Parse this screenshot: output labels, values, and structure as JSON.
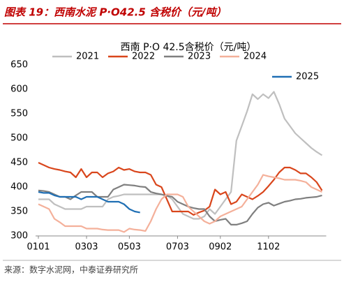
{
  "header": "图表 19：西南水泥 P·O42.5 含税价（元/吨）",
  "source": "来源：数字水泥网，中泰证券研究所",
  "chart_data": {
    "type": "line",
    "title": "西南 P·O 42.5含税价（元/吨）",
    "categories": [
      "0101",
      null,
      null,
      null,
      null,
      null,
      null,
      null,
      null,
      "0303",
      null,
      null,
      null,
      null,
      null,
      null,
      null,
      "0503",
      null,
      null,
      null,
      null,
      null,
      null,
      null,
      null,
      "0703",
      null,
      null,
      null,
      null,
      null,
      null,
      null,
      "0902",
      null,
      null,
      null,
      null,
      null,
      null,
      null,
      null,
      "1102",
      null,
      null,
      null,
      null,
      null,
      null,
      null,
      null,
      null,
      null
    ],
    "ylim": [
      300,
      650
    ],
    "yticks": [
      300,
      350,
      400,
      450,
      500,
      550,
      600,
      650
    ],
    "grid": false,
    "series": [
      {
        "name": "2021",
        "color": "#bfbfbf",
        "values": [
          375,
          375,
          375,
          365,
          360,
          355,
          355,
          355,
          355,
          360,
          360,
          360,
          360,
          375,
          380,
          382,
          385,
          385,
          385,
          385,
          385,
          385,
          385,
          385,
          383,
          375,
          360,
          345,
          340,
          335,
          335,
          340,
          355,
          345,
          360,
          375,
          390,
          495,
          525,
          555,
          590,
          580,
          590,
          582,
          595,
          570,
          540,
          525,
          510,
          500,
          490,
          480,
          472,
          465
        ]
      },
      {
        "name": "2022",
        "color": "#d9461c",
        "values": [
          450,
          445,
          440,
          437,
          435,
          432,
          430,
          420,
          437,
          420,
          430,
          430,
          420,
          428,
          432,
          440,
          435,
          437,
          432,
          430,
          430,
          425,
          405,
          400,
          375,
          350,
          350,
          350,
          350,
          343,
          348,
          352,
          360,
          395,
          385,
          390,
          365,
          370,
          385,
          380,
          375,
          382,
          390,
          402,
          415,
          430,
          440,
          440,
          435,
          428,
          428,
          420,
          410,
          393
        ]
      },
      {
        "name": "2023",
        "color": "#7f7f7f",
        "values": [
          393,
          392,
          390,
          385,
          380,
          380,
          375,
          383,
          390,
          390,
          390,
          380,
          380,
          380,
          395,
          400,
          405,
          404,
          403,
          401,
          400,
          390,
          387,
          385,
          382,
          380,
          370,
          365,
          360,
          357,
          355,
          355,
          340,
          330,
          333,
          335,
          323,
          323,
          326,
          330,
          345,
          358,
          365,
          368,
          362,
          366,
          370,
          372,
          375,
          376,
          378,
          379,
          380,
          383
        ]
      },
      {
        "name": "2024",
        "color": "#f4b09a",
        "values": [
          365,
          360,
          355,
          335,
          328,
          320,
          320,
          320,
          320,
          315,
          315,
          315,
          313,
          312,
          312,
          312,
          308,
          315,
          313,
          312,
          310,
          330,
          355,
          375,
          385,
          385,
          385,
          380,
          360,
          350,
          340,
          330,
          325,
          330,
          340,
          345,
          350,
          355,
          360,
          375,
          390,
          405,
          425,
          422,
          420,
          418,
          415,
          415,
          415,
          413,
          410,
          400,
          395,
          390
        ]
      },
      {
        "name": "2025",
        "color": "#1f6fb4",
        "values": [
          390,
          388,
          388,
          383,
          380,
          380,
          380,
          380,
          375,
          380,
          380,
          380,
          375,
          370,
          370,
          370,
          365,
          355,
          350,
          348,
          null,
          null,
          null,
          null,
          null,
          null,
          null,
          null,
          null,
          null,
          null,
          null,
          null,
          null,
          null,
          null,
          null,
          null,
          null,
          null,
          null,
          null,
          null,
          null,
          null,
          null,
          null,
          null,
          null,
          null,
          null,
          null,
          null,
          null
        ]
      }
    ]
  }
}
